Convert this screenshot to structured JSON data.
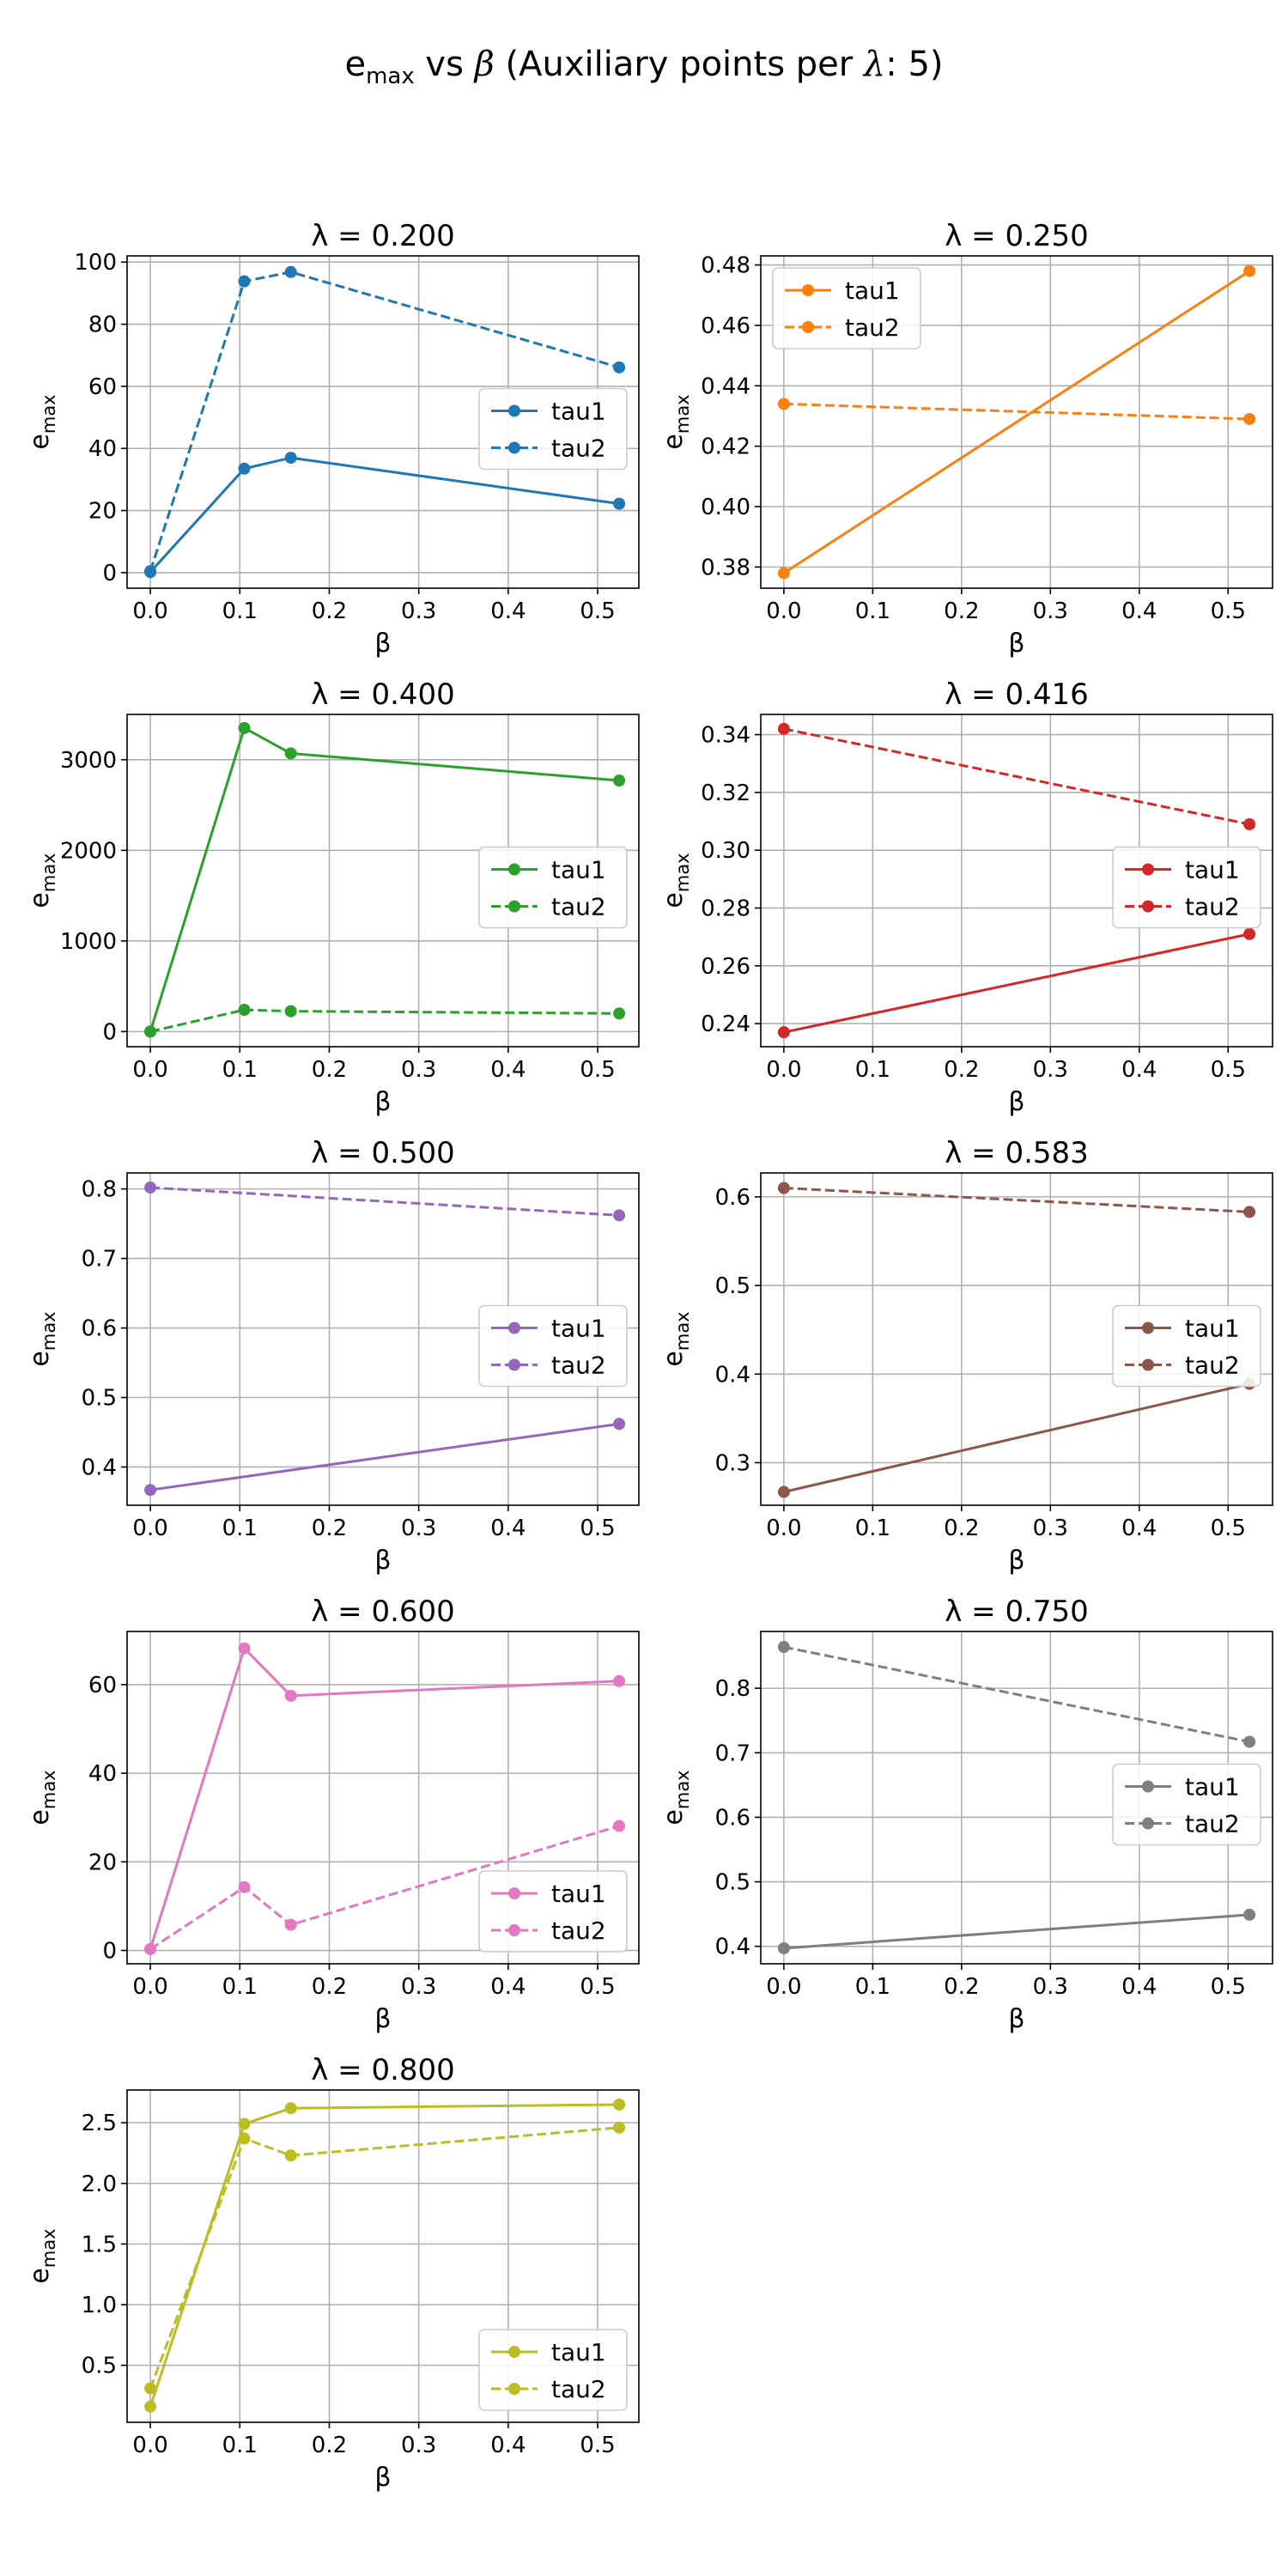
{
  "figure": {
    "title_prefix": "e",
    "title_sub": "max",
    "title_vs": " vs ",
    "title_beta": "β",
    "title_rest_a": " (Auxiliary points per ",
    "title_lambda": "λ",
    "title_rest_b": ": 5)"
  },
  "axis_text": {
    "xlabel": "β",
    "ylabel_main": "e",
    "ylabel_sub": "max"
  },
  "legend_labels": [
    "tau1",
    "tau2"
  ],
  "chart_data": [
    {
      "type": "line",
      "title": "λ = 0.200",
      "color": "#1f77b4",
      "xlim": [
        -0.026,
        0.546
      ],
      "ylim": [
        -5,
        102
      ],
      "yticks": [
        0,
        20,
        40,
        60,
        80,
        100
      ],
      "ytick_labels": [
        "0",
        "20",
        "40",
        "60",
        "80",
        "100"
      ],
      "xticks": [
        0.0,
        0.1,
        0.2,
        0.3,
        0.4,
        0.5
      ],
      "xtick_labels": [
        "0.0",
        "0.1",
        "0.2",
        "0.3",
        "0.4",
        "0.5"
      ],
      "legend": "center-right",
      "grid": true,
      "series": [
        {
          "name": "tau1",
          "style": "solid",
          "x": [
            0.0,
            0.105,
            0.157,
            0.524
          ],
          "y": [
            0.2,
            33.5,
            37.0,
            22.2
          ]
        },
        {
          "name": "tau2",
          "style": "dashed",
          "x": [
            0.0,
            0.105,
            0.157,
            0.524
          ],
          "y": [
            0.5,
            93.8,
            96.8,
            66.1
          ]
        }
      ]
    },
    {
      "type": "line",
      "title": "λ = 0.250",
      "color": "#ff7f0e",
      "xlim": [
        -0.026,
        0.55
      ],
      "ylim": [
        0.373,
        0.483
      ],
      "yticks": [
        0.38,
        0.4,
        0.42,
        0.44,
        0.46,
        0.48
      ],
      "ytick_labels": [
        "0.38",
        "0.40",
        "0.42",
        "0.44",
        "0.46",
        "0.48"
      ],
      "xticks": [
        0.0,
        0.1,
        0.2,
        0.3,
        0.4,
        0.5
      ],
      "xtick_labels": [
        "0.0",
        "0.1",
        "0.2",
        "0.3",
        "0.4",
        "0.5"
      ],
      "legend": "upper-left",
      "grid": true,
      "series": [
        {
          "name": "tau1",
          "style": "solid",
          "x": [
            0.0,
            0.524
          ],
          "y": [
            0.378,
            0.478
          ]
        },
        {
          "name": "tau2",
          "style": "dashed",
          "x": [
            0.0,
            0.524
          ],
          "y": [
            0.434,
            0.429
          ]
        }
      ]
    },
    {
      "type": "line",
      "title": "λ = 0.400",
      "color": "#2ca02c",
      "xlim": [
        -0.026,
        0.546
      ],
      "ylim": [
        -167,
        3500
      ],
      "yticks": [
        0,
        1000,
        2000,
        3000
      ],
      "ytick_labels": [
        "0",
        "1000",
        "2000",
        "3000"
      ],
      "xticks": [
        0.0,
        0.1,
        0.2,
        0.3,
        0.4,
        0.5
      ],
      "xtick_labels": [
        "0.0",
        "0.1",
        "0.2",
        "0.3",
        "0.4",
        "0.5"
      ],
      "legend": "center-right",
      "grid": true,
      "series": [
        {
          "name": "tau1",
          "style": "solid",
          "x": [
            0.0,
            0.105,
            0.157,
            0.524
          ],
          "y": [
            0,
            3350,
            3070,
            2770
          ]
        },
        {
          "name": "tau2",
          "style": "dashed",
          "x": [
            0.0,
            0.105,
            0.157,
            0.524
          ],
          "y": [
            0,
            240,
            225,
            200
          ]
        }
      ]
    },
    {
      "type": "line",
      "title": "λ = 0.416",
      "color": "#d62728",
      "xlim": [
        -0.026,
        0.55
      ],
      "ylim": [
        0.232,
        0.347
      ],
      "yticks": [
        0.24,
        0.26,
        0.28,
        0.3,
        0.32,
        0.34
      ],
      "ytick_labels": [
        "0.24",
        "0.26",
        "0.28",
        "0.30",
        "0.32",
        "0.34"
      ],
      "xticks": [
        0.0,
        0.1,
        0.2,
        0.3,
        0.4,
        0.5
      ],
      "xtick_labels": [
        "0.0",
        "0.1",
        "0.2",
        "0.3",
        "0.4",
        "0.5"
      ],
      "legend": "center-right",
      "grid": true,
      "series": [
        {
          "name": "tau1",
          "style": "solid",
          "x": [
            0.0,
            0.524
          ],
          "y": [
            0.237,
            0.271
          ]
        },
        {
          "name": "tau2",
          "style": "dashed",
          "x": [
            0.0,
            0.524
          ],
          "y": [
            0.342,
            0.309
          ]
        }
      ]
    },
    {
      "type": "line",
      "title": "λ = 0.500",
      "color": "#9467bd",
      "xlim": [
        -0.026,
        0.546
      ],
      "ylim": [
        0.345,
        0.823
      ],
      "yticks": [
        0.4,
        0.5,
        0.6,
        0.7,
        0.8
      ],
      "ytick_labels": [
        "0.4",
        "0.5",
        "0.6",
        "0.7",
        "0.8"
      ],
      "xticks": [
        0.0,
        0.1,
        0.2,
        0.3,
        0.4,
        0.5
      ],
      "xtick_labels": [
        "0.0",
        "0.1",
        "0.2",
        "0.3",
        "0.4",
        "0.5"
      ],
      "legend": "center-right",
      "grid": true,
      "series": [
        {
          "name": "tau1",
          "style": "solid",
          "x": [
            0.0,
            0.524
          ],
          "y": [
            0.367,
            0.462
          ]
        },
        {
          "name": "tau2",
          "style": "dashed",
          "x": [
            0.0,
            0.524
          ],
          "y": [
            0.802,
            0.762
          ]
        }
      ]
    },
    {
      "type": "line",
      "title": "λ = 0.583",
      "color": "#8c564b",
      "xlim": [
        -0.026,
        0.55
      ],
      "ylim": [
        0.252,
        0.627
      ],
      "yticks": [
        0.3,
        0.4,
        0.5,
        0.6
      ],
      "ytick_labels": [
        "0.3",
        "0.4",
        "0.5",
        "0.6"
      ],
      "xticks": [
        0.0,
        0.1,
        0.2,
        0.3,
        0.4,
        0.5
      ],
      "xtick_labels": [
        "0.0",
        "0.1",
        "0.2",
        "0.3",
        "0.4",
        "0.5"
      ],
      "legend": "center-right",
      "grid": true,
      "series": [
        {
          "name": "tau1",
          "style": "solid",
          "x": [
            0.0,
            0.524
          ],
          "y": [
            0.267,
            0.389
          ]
        },
        {
          "name": "tau2",
          "style": "dashed",
          "x": [
            0.0,
            0.524
          ],
          "y": [
            0.61,
            0.583
          ]
        }
      ]
    },
    {
      "type": "line",
      "title": "λ = 0.600",
      "color": "#e377c2",
      "xlim": [
        -0.026,
        0.546
      ],
      "ylim": [
        -3,
        72
      ],
      "yticks": [
        0,
        20,
        40,
        60
      ],
      "ytick_labels": [
        "0",
        "20",
        "40",
        "60"
      ],
      "xticks": [
        0.0,
        0.1,
        0.2,
        0.3,
        0.4,
        0.5
      ],
      "xtick_labels": [
        "0.0",
        "0.1",
        "0.2",
        "0.3",
        "0.4",
        "0.5"
      ],
      "legend": "lower-right",
      "grid": true,
      "series": [
        {
          "name": "tau1",
          "style": "solid",
          "x": [
            0.0,
            0.105,
            0.157,
            0.524
          ],
          "y": [
            0.3,
            68.2,
            57.5,
            60.8
          ]
        },
        {
          "name": "tau2",
          "style": "dashed",
          "x": [
            0.0,
            0.105,
            0.157,
            0.524
          ],
          "y": [
            0.3,
            14.3,
            5.8,
            28.1
          ]
        }
      ]
    },
    {
      "type": "line",
      "title": "λ = 0.750",
      "color": "#7f7f7f",
      "xlim": [
        -0.026,
        0.55
      ],
      "ylim": [
        0.373,
        0.888
      ],
      "yticks": [
        0.4,
        0.5,
        0.6,
        0.7,
        0.8
      ],
      "ytick_labels": [
        "0.4",
        "0.5",
        "0.6",
        "0.7",
        "0.8"
      ],
      "xticks": [
        0.0,
        0.1,
        0.2,
        0.3,
        0.4,
        0.5
      ],
      "xtick_labels": [
        "0.0",
        "0.1",
        "0.2",
        "0.3",
        "0.4",
        "0.5"
      ],
      "legend": "center-right",
      "grid": true,
      "series": [
        {
          "name": "tau1",
          "style": "solid",
          "x": [
            0.0,
            0.524
          ],
          "y": [
            0.397,
            0.449
          ]
        },
        {
          "name": "tau2",
          "style": "dashed",
          "x": [
            0.0,
            0.524
          ],
          "y": [
            0.864,
            0.717
          ]
        }
      ]
    },
    {
      "type": "line",
      "title": "λ = 0.800",
      "color": "#bcbd22",
      "xlim": [
        -0.026,
        0.546
      ],
      "ylim": [
        0.03,
        2.77
      ],
      "yticks": [
        0.5,
        1.0,
        1.5,
        2.0,
        2.5
      ],
      "ytick_labels": [
        "0.5",
        "1.0",
        "1.5",
        "2.0",
        "2.5"
      ],
      "xticks": [
        0.0,
        0.1,
        0.2,
        0.3,
        0.4,
        0.5
      ],
      "xtick_labels": [
        "0.0",
        "0.1",
        "0.2",
        "0.3",
        "0.4",
        "0.5"
      ],
      "legend": "lower-right",
      "grid": true,
      "series": [
        {
          "name": "tau1",
          "style": "solid",
          "x": [
            0.0,
            0.105,
            0.157,
            0.524
          ],
          "y": [
            0.16,
            2.49,
            2.62,
            2.65
          ]
        },
        {
          "name": "tau2",
          "style": "dashed",
          "x": [
            0.0,
            0.105,
            0.157,
            0.524
          ],
          "y": [
            0.31,
            2.37,
            2.23,
            2.46
          ]
        }
      ]
    }
  ]
}
